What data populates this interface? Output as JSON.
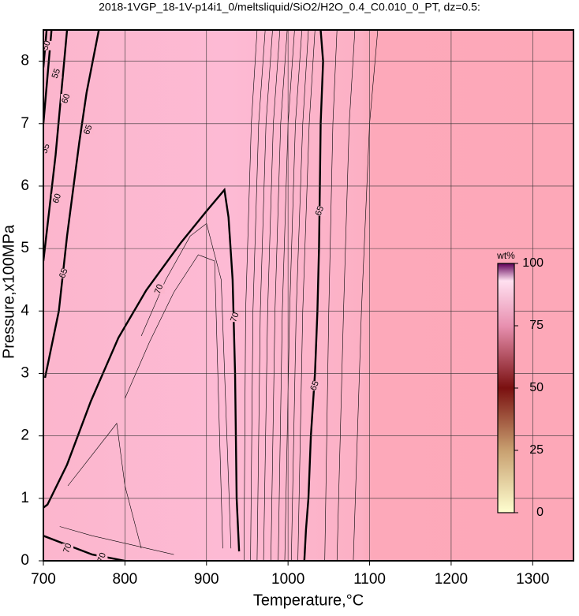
{
  "chart_data": {
    "type": "contour",
    "title": "2018-1VGP_18-1V-p14i1_0/meltsliquid/SiO2/H2O_0.4_C0.010_0_PT, dz=0.5:",
    "x_label": "Temperature,°C",
    "y_label": "Pressure,x100MPa",
    "xlim": [
      700,
      1350
    ],
    "ylim": [
      0,
      8.5
    ],
    "xticks": [
      700,
      800,
      900,
      1000,
      1100,
      1200,
      1300
    ],
    "yticks": [
      0,
      1,
      2,
      3,
      4,
      5,
      6,
      7,
      8
    ],
    "grid": true,
    "contours": [
      {
        "level": 70,
        "x": [
          700,
          705,
          729,
          758,
          792,
          826,
          869,
          900,
          922,
          927,
          932,
          935,
          937,
          940
        ],
        "y": [
          0.85,
          0.9,
          1.54,
          2.55,
          3.57,
          4.33,
          5.1,
          5.6,
          5.94,
          5.5,
          4.5,
          3,
          1,
          0.15
        ],
        "labels": [
          [
            842,
            4.35
          ],
          [
            935,
            3.9
          ]
        ]
      },
      {
        "level": 70,
        "x": [
          700,
          730,
          760,
          800
        ],
        "y": [
          0.4,
          0.25,
          0.1,
          0
        ],
        "labels": [
          [
            730,
            0.2
          ],
          [
            772,
            0.05
          ]
        ]
      },
      {
        "level": 65,
        "x": [
          1020,
          1022,
          1025,
          1028,
          1033,
          1036,
          1038,
          1039,
          1040,
          1043,
          1040
        ],
        "y": [
          0,
          0.5,
          1,
          2,
          3,
          4,
          5,
          6,
          7,
          8,
          8.5
        ],
        "labels": [
          [
            1033,
            2.8
          ],
          [
            1039,
            5.6
          ]
        ]
      },
      {
        "level": 65,
        "x": [
          702,
          719,
          729,
          744,
          753,
          768
        ],
        "y": [
          2.93,
          4.0,
          5.2,
          6.7,
          7.5,
          8.5
        ],
        "labels": [
          [
            725,
            4.6
          ],
          [
            755,
            6.9
          ]
        ]
      },
      {
        "level": 60,
        "x": [
          700,
          715,
          729
        ],
        "y": [
          4.8,
          6.5,
          8.5
        ],
        "labels": [
          [
            717,
            5.8
          ],
          [
            728,
            7.4
          ]
        ]
      },
      {
        "level": 55,
        "x": [
          700,
          710
        ],
        "y": [
          7,
          8.5
        ],
        "labels": [
          [
            703,
            6.6
          ],
          [
            716,
            7.8
          ]
        ]
      },
      {
        "level": 50,
        "x": [
          700,
          704
        ],
        "y": [
          7.9,
          8.5
        ],
        "labels": [
          [
            704,
            8.25
          ]
        ]
      }
    ],
    "minor_contours": [
      {
        "level": 69.5,
        "x": [
          946,
          948,
          955,
          962
        ],
        "y": [
          0,
          4,
          7,
          8.5
        ]
      },
      {
        "level": 69,
        "x": [
          954,
          957,
          964,
          972
        ],
        "y": [
          0,
          4,
          7,
          8.5
        ]
      },
      {
        "level": 68.5,
        "x": [
          962,
          966,
          973,
          981
        ],
        "y": [
          0,
          4,
          7,
          8.5
        ]
      },
      {
        "level": 68,
        "x": [
          970,
          975,
          982,
          990
        ],
        "y": [
          0,
          4,
          7,
          8.5
        ]
      },
      {
        "level": 67.5,
        "x": [
          979,
          984,
          991,
          999
        ],
        "y": [
          0,
          4,
          7,
          8.5
        ]
      },
      {
        "level": 67,
        "x": [
          988,
          993,
          1000,
          1008
        ],
        "y": [
          0,
          4,
          7,
          8.5
        ]
      },
      {
        "level": 66.5,
        "x": [
          996,
          1002,
          1009,
          1017
        ],
        "y": [
          0,
          4,
          7,
          8.5
        ]
      },
      {
        "level": 66,
        "x": [
          1004,
          1010,
          1018,
          1025
        ],
        "y": [
          0,
          4,
          7,
          8.5
        ]
      },
      {
        "level": 65.5,
        "x": [
          1012,
          1018,
          1026,
          1033
        ],
        "y": [
          0,
          4,
          7,
          8.5
        ]
      },
      {
        "level": 64.5,
        "x": [
          1045,
          1050,
          1055,
          1060
        ],
        "y": [
          0,
          4,
          7,
          8.5
        ]
      },
      {
        "level": 64,
        "x": [
          1060,
          1068,
          1075,
          1082
        ],
        "y": [
          0,
          4,
          7,
          8.5
        ]
      },
      {
        "level": 63.5,
        "x": [
          1080,
          1090,
          1100,
          1110
        ],
        "y": [
          0,
          4,
          7,
          8.5
        ]
      },
      {
        "level": 69.5,
        "x": [
          930,
          918,
          900,
          880,
          850,
          820
        ],
        "y": [
          0.2,
          4.5,
          5.4,
          5.2,
          4.5,
          3.6
        ]
      },
      {
        "level": 69,
        "x": [
          920,
          910,
          890,
          860,
          830,
          800
        ],
        "y": [
          0.2,
          4.8,
          4.9,
          4.3,
          3.5,
          2.6
        ]
      },
      {
        "level": 68.5,
        "x": [
          730,
          760,
          790,
          800,
          820
        ],
        "y": [
          1.2,
          1.7,
          2.2,
          1.2,
          0.2
        ]
      },
      {
        "level": 71,
        "x": [
          720,
          760,
          810,
          860
        ],
        "y": [
          0.55,
          0.4,
          0.25,
          0.1
        ]
      }
    ],
    "colorbar": {
      "label": "wt%",
      "lim": [
        0,
        100
      ],
      "ticks": [
        0,
        25,
        50,
        75,
        100
      ]
    }
  }
}
